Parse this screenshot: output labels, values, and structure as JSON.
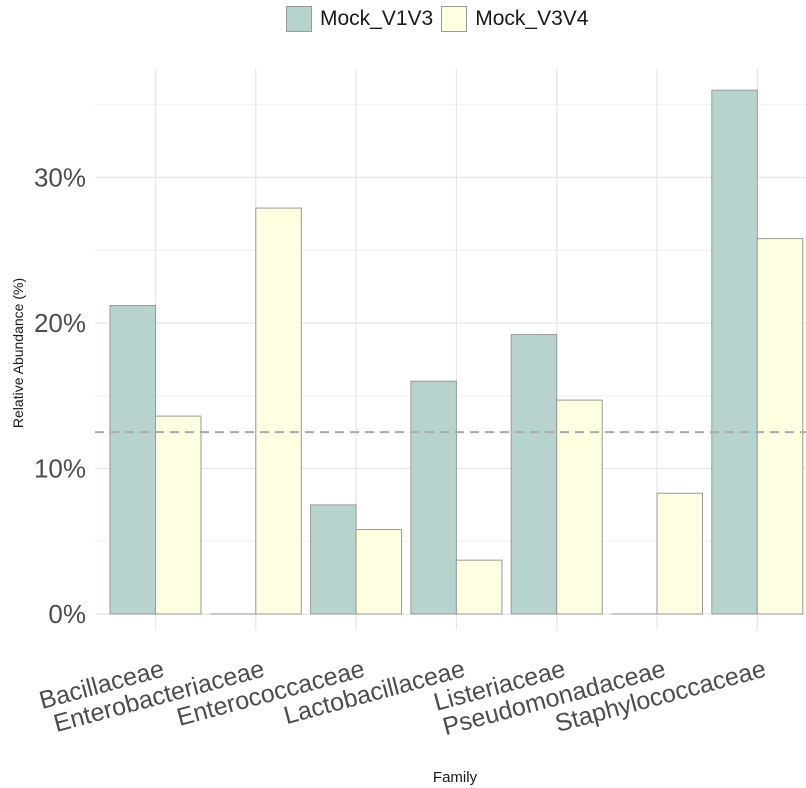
{
  "chart_data": {
    "type": "bar",
    "categories": [
      "Bacillaceae",
      "Enterobacteriaceae",
      "Enterococcaceae",
      "Lactobacillaceae",
      "Listeriaceae",
      "Pseudomonadaceae",
      "Staphylococcaceae"
    ],
    "series": [
      {
        "name": "Mock_V1V3",
        "color": "#b7d3ce",
        "values": [
          21.2,
          0,
          7.5,
          16.0,
          19.2,
          0,
          36.0
        ]
      },
      {
        "name": "Mock_V3V4",
        "color": "#fefee1",
        "values": [
          13.6,
          27.9,
          5.8,
          3.7,
          14.7,
          8.3,
          25.8
        ]
      }
    ],
    "xlabel": "Family",
    "ylabel": "Relative Abundance (%)",
    "ylim": [
      0,
      37.5
    ],
    "y_ticks": [
      0,
      10,
      20,
      30
    ],
    "y_tick_labels": [
      "0%",
      "10%",
      "20%",
      "30%"
    ],
    "reference_line": {
      "value": 12.5,
      "style": "dashed",
      "color": "#aaaaaa"
    },
    "grid": true,
    "legend_position": "top"
  }
}
